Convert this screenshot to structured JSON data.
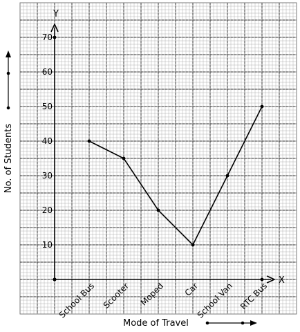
{
  "chart_data": {
    "type": "line",
    "xlabel": "Mode of Travel",
    "ylabel": "No. of Students",
    "x_axis_letter": "X",
    "y_axis_letter": "Y",
    "categories": [
      "School Bus",
      "Scooter",
      "Moped",
      "Car",
      "School Van",
      "RTC Bus"
    ],
    "values": [
      40,
      35,
      20,
      10,
      30,
      50
    ],
    "yticks": [
      10,
      20,
      30,
      40,
      50,
      60,
      70
    ],
    "ylim": [
      0,
      70
    ],
    "grid": true,
    "line_color": "#000000",
    "grid_color": "#b0b0b0"
  }
}
